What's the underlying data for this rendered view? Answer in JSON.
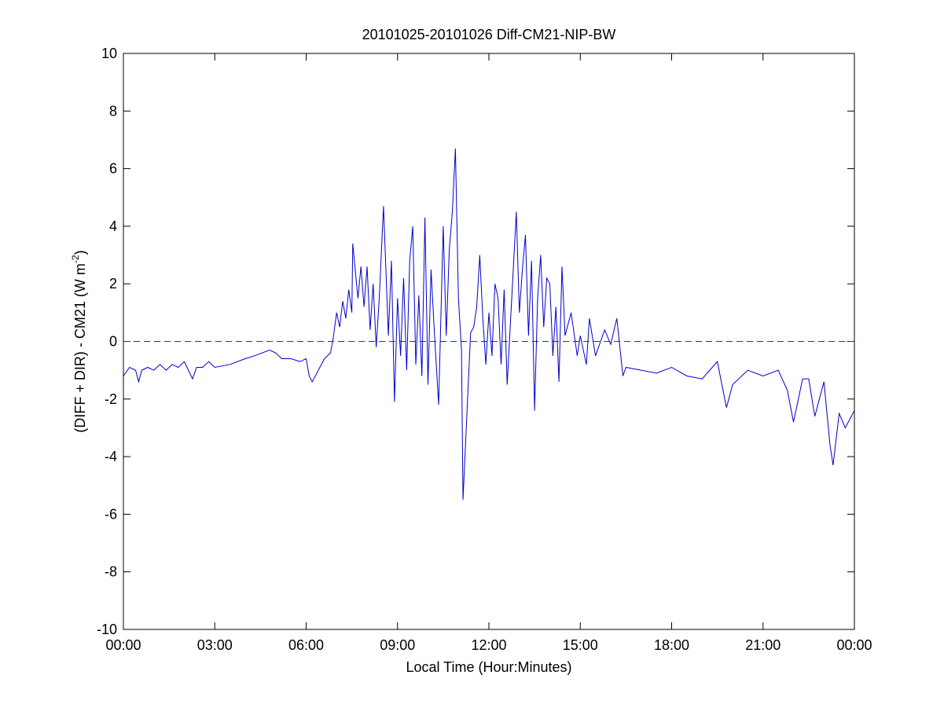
{
  "chart_data": {
    "type": "line",
    "title": "20101025-20101026 Diff-CM21-NIP-BW",
    "xlabel": "Local Time (Hour:Minutes)",
    "ylabel": [
      "(DIFF + DIR) - CM21 (W m",
      "-2",
      ")"
    ],
    "xlim": [
      0,
      24
    ],
    "ylim": [
      -10,
      10
    ],
    "xticks": [
      {
        "value": 0,
        "label": "00:00"
      },
      {
        "value": 3,
        "label": "03:00"
      },
      {
        "value": 6,
        "label": "06:00"
      },
      {
        "value": 9,
        "label": "09:00"
      },
      {
        "value": 12,
        "label": "12:00"
      },
      {
        "value": 15,
        "label": "15:00"
      },
      {
        "value": 18,
        "label": "18:00"
      },
      {
        "value": 21,
        "label": "21:00"
      },
      {
        "value": 24,
        "label": "00:00"
      }
    ],
    "yticks": [
      -10,
      -8,
      -6,
      -4,
      -2,
      0,
      2,
      4,
      6,
      8,
      10
    ],
    "reference_line": {
      "value": 0,
      "color": "#cc0000"
    },
    "series": [
      {
        "color": "#0000cc",
        "x": [
          0,
          0.2,
          0.4,
          0.5,
          0.6,
          0.8,
          1.0,
          1.2,
          1.4,
          1.6,
          1.8,
          2.0,
          2.27,
          2.4,
          2.6,
          2.8,
          3.0,
          3.5,
          4.0,
          4.3,
          4.8,
          5.0,
          5.2,
          5.5,
          5.8,
          6.0,
          6.1,
          6.2,
          6.4,
          6.6,
          6.8,
          6.9,
          7.0,
          7.1,
          7.2,
          7.3,
          7.4,
          7.5,
          7.53,
          7.7,
          7.8,
          7.9,
          8.0,
          8.1,
          8.2,
          8.3,
          8.4,
          8.54,
          8.7,
          8.8,
          8.9,
          9.0,
          9.1,
          9.2,
          9.3,
          9.4,
          9.5,
          9.6,
          9.7,
          9.8,
          9.9,
          10.0,
          10.1,
          10.2,
          10.35,
          10.5,
          10.6,
          10.7,
          10.8,
          10.9,
          11.0,
          11.1,
          11.15,
          11.3,
          11.4,
          11.5,
          11.6,
          11.7,
          11.8,
          11.9,
          12.0,
          12.1,
          12.2,
          12.3,
          12.4,
          12.5,
          12.6,
          12.7,
          12.9,
          13.0,
          13.1,
          13.2,
          13.3,
          13.4,
          13.5,
          13.6,
          13.7,
          13.8,
          13.9,
          14.0,
          14.1,
          14.2,
          14.3,
          14.4,
          14.5,
          14.7,
          14.9,
          15.0,
          15.2,
          15.3,
          15.5,
          15.8,
          16.0,
          16.2,
          16.4,
          16.5,
          17.0,
          17.5,
          18.0,
          18.5,
          19.0,
          19.5,
          19.8,
          20.0,
          20.5,
          21.0,
          21.5,
          21.8,
          22.0,
          22.3,
          22.5,
          22.7,
          23.0,
          23.2,
          23.3,
          23.5,
          23.7,
          24.0
        ],
        "values": [
          -1.2,
          -0.9,
          -1.0,
          -1.4,
          -1.0,
          -0.9,
          -1.0,
          -0.8,
          -1.0,
          -0.8,
          -0.9,
          -0.7,
          -1.3,
          -0.9,
          -0.9,
          -0.7,
          -0.9,
          -0.8,
          -0.6,
          -0.5,
          -0.3,
          -0.4,
          -0.6,
          -0.6,
          -0.7,
          -0.6,
          -1.2,
          -1.4,
          -1.0,
          -0.6,
          -0.4,
          0.2,
          1.0,
          0.5,
          1.4,
          0.8,
          1.8,
          1.0,
          3.4,
          1.5,
          2.6,
          1.2,
          2.6,
          0.4,
          2.0,
          -0.2,
          1.5,
          4.7,
          0.2,
          2.8,
          -2.1,
          1.5,
          -0.5,
          2.2,
          -1.0,
          2.8,
          4.0,
          -0.8,
          1.6,
          -1.2,
          4.3,
          -1.5,
          2.5,
          0.5,
          -2.2,
          4.0,
          0.2,
          3.2,
          4.5,
          6.7,
          1.5,
          -0.3,
          -5.5,
          -2.0,
          0.3,
          0.5,
          1.2,
          3.0,
          0.8,
          -0.8,
          1.0,
          -0.5,
          2.0,
          1.5,
          -0.8,
          1.8,
          -1.5,
          0.5,
          4.5,
          1.0,
          2.5,
          3.7,
          0.2,
          2.8,
          -2.4,
          1.5,
          3.0,
          0.5,
          2.2,
          2.0,
          -0.5,
          1.2,
          -1.4,
          2.6,
          0.2,
          1.0,
          -0.5,
          0.2,
          -0.8,
          0.8,
          -0.5,
          0.4,
          -0.1,
          0.8,
          -1.2,
          -0.9,
          -1.0,
          -1.1,
          -0.9,
          -1.2,
          -1.3,
          -0.7,
          -2.3,
          -1.5,
          -1.0,
          -1.2,
          -1.0,
          -1.7,
          -2.8,
          -1.3,
          -1.3,
          -2.6,
          -1.4,
          -3.6,
          -4.3,
          -2.5,
          -3.0,
          -2.4
        ]
      }
    ]
  }
}
